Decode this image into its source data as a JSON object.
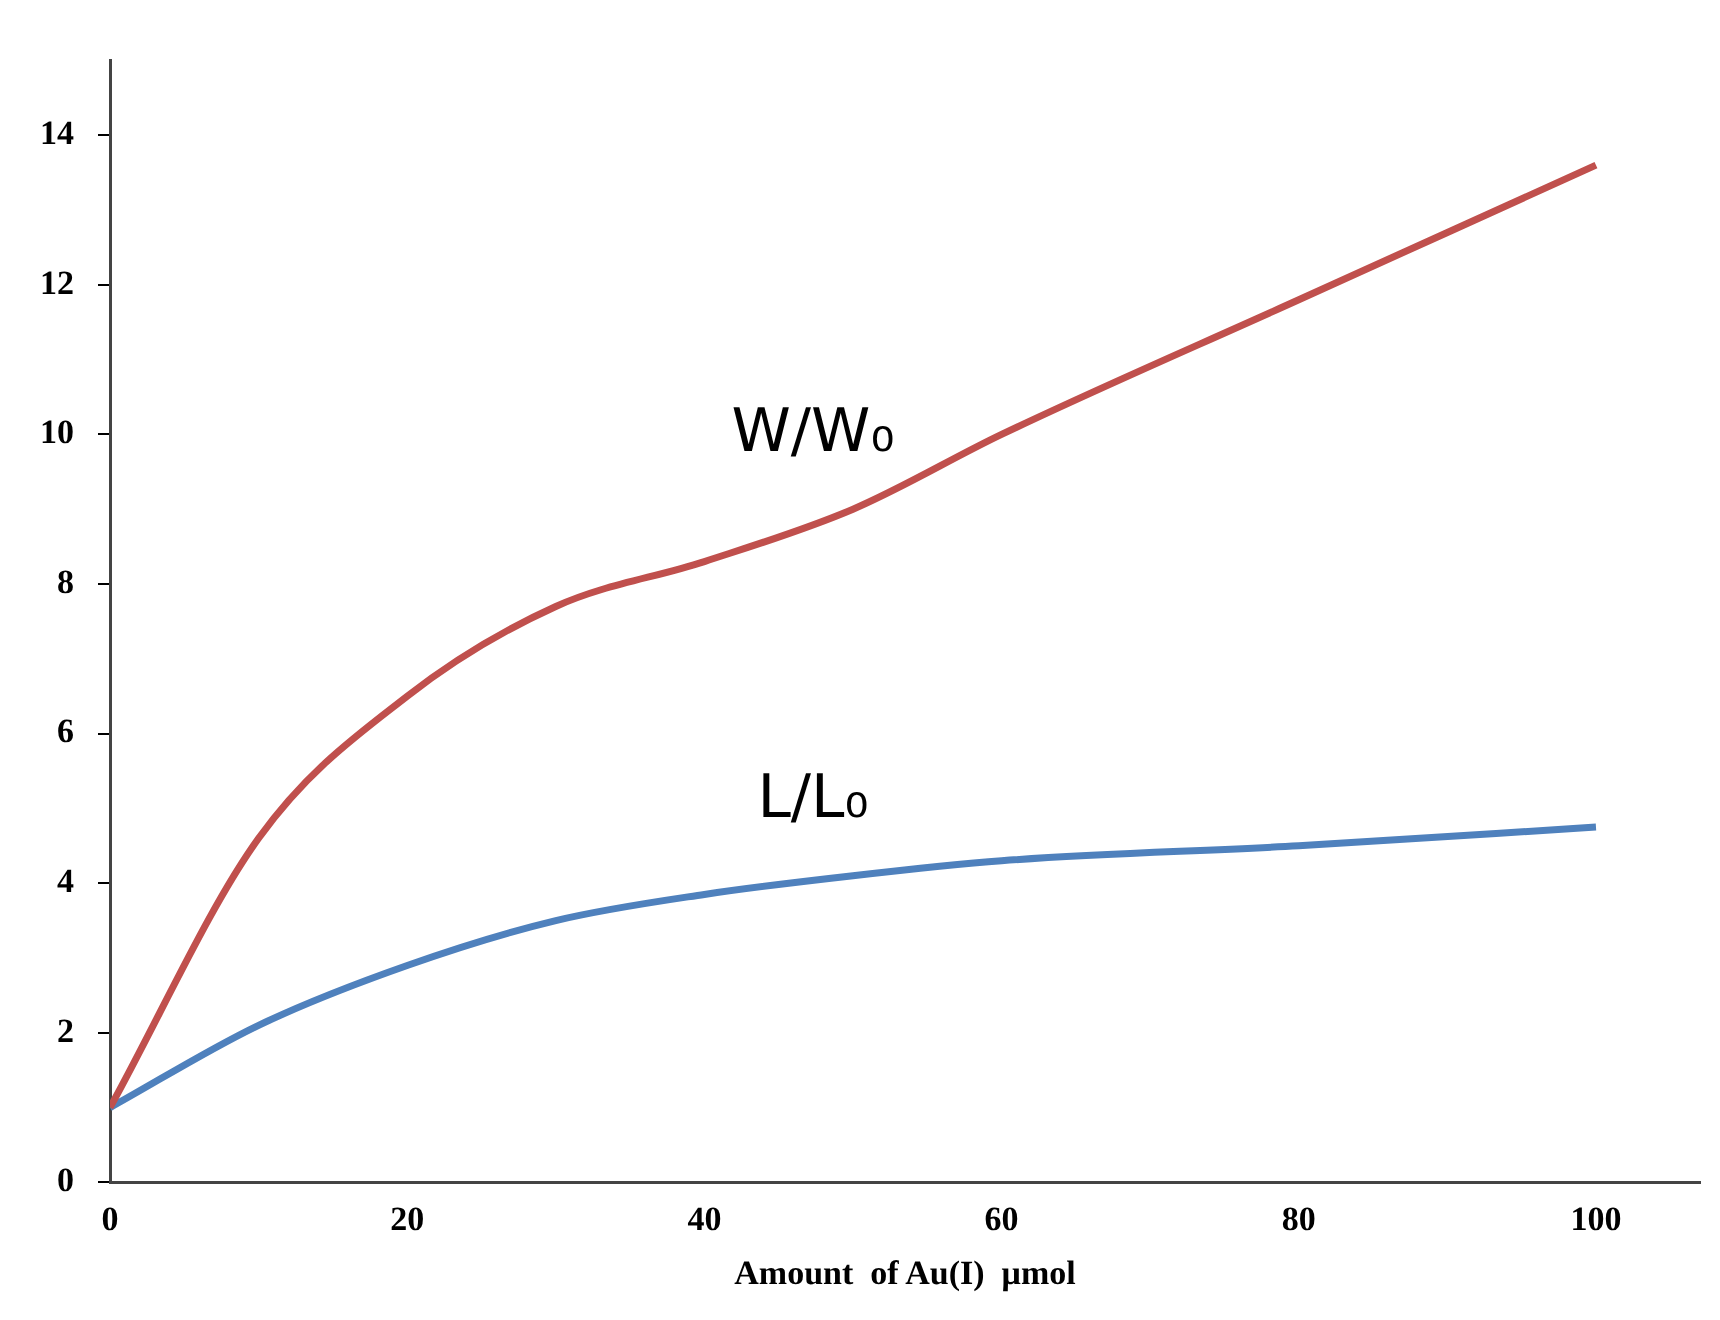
{
  "chart_data": {
    "type": "line",
    "xlabel": "Amount  of Au(I)  μmol",
    "x": [
      0,
      10,
      20,
      30,
      40,
      50,
      60,
      80,
      100
    ],
    "series": [
      {
        "name": "W/W₀",
        "color": "#c0504d",
        "values": [
          1,
          4.6,
          6.5,
          7.7,
          8.3,
          9.0,
          10.0,
          11.8,
          13.6
        ]
      },
      {
        "name": "L/L₀",
        "color": "#4f81bd",
        "values": [
          1,
          2.1,
          2.9,
          3.5,
          3.85,
          4.1,
          4.3,
          4.5,
          4.75
        ]
      }
    ],
    "xlim": [
      0,
      107
    ],
    "xticks": [
      0,
      20,
      40,
      60,
      80,
      100
    ],
    "ylim": [
      0,
      15
    ],
    "yticks": [
      0,
      2,
      4,
      6,
      8,
      10,
      12,
      14
    ],
    "grid": false,
    "legend": false,
    "marker": "none",
    "line_style": "solid"
  }
}
